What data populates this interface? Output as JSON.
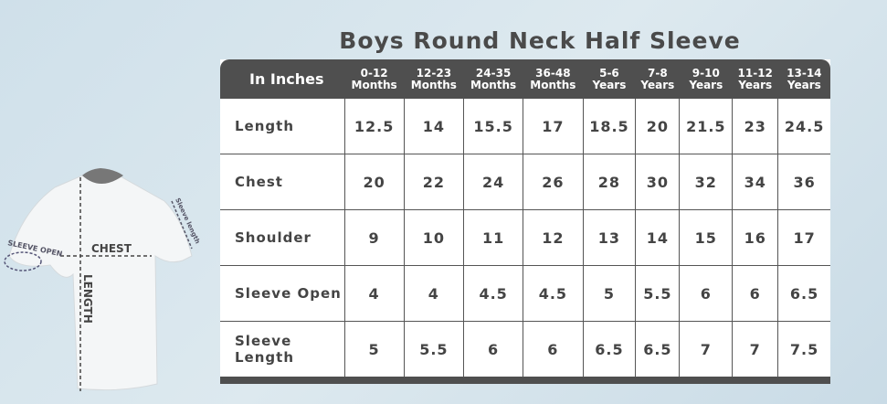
{
  "title": "Boys Round Neck Half Sleeve",
  "header": {
    "unit": "In Inches",
    "sizes": [
      [
        "0-12",
        "Months"
      ],
      [
        "12-23",
        "Months"
      ],
      [
        "24-35",
        "Months"
      ],
      [
        "36-48",
        "Months"
      ],
      [
        "5-6",
        "Years"
      ],
      [
        "7-8",
        "Years"
      ],
      [
        "9-10",
        "Years"
      ],
      [
        "11-12",
        "Years"
      ],
      [
        "13-14",
        "Years"
      ]
    ]
  },
  "rows": [
    {
      "label": "Length",
      "values": [
        "12.5",
        "14",
        "15.5",
        "17",
        "18.5",
        "20",
        "21.5",
        "23",
        "24.5"
      ]
    },
    {
      "label": "Chest",
      "values": [
        "20",
        "22",
        "24",
        "26",
        "28",
        "30",
        "32",
        "34",
        "36"
      ]
    },
    {
      "label": "Shoulder",
      "values": [
        "9",
        "10",
        "11",
        "12",
        "13",
        "14",
        "15",
        "16",
        "17"
      ]
    },
    {
      "label": "Sleeve Open",
      "values": [
        "4",
        "4",
        "4.5",
        "4.5",
        "5",
        "5.5",
        "6",
        "6",
        "6.5"
      ]
    },
    {
      "label": "Sleeve Length",
      "values": [
        "5",
        "5.5",
        "6",
        "6",
        "6.5",
        "6.5",
        "7",
        "7",
        "7.5"
      ]
    }
  ],
  "diagram": {
    "chest": "CHEST",
    "length": "LENGTH",
    "sleeve_open": "SLEEVE OPEN",
    "sleeve_length": "Sleeve length"
  },
  "colors": {
    "header": "#4f4f4f",
    "text": "#444444"
  }
}
